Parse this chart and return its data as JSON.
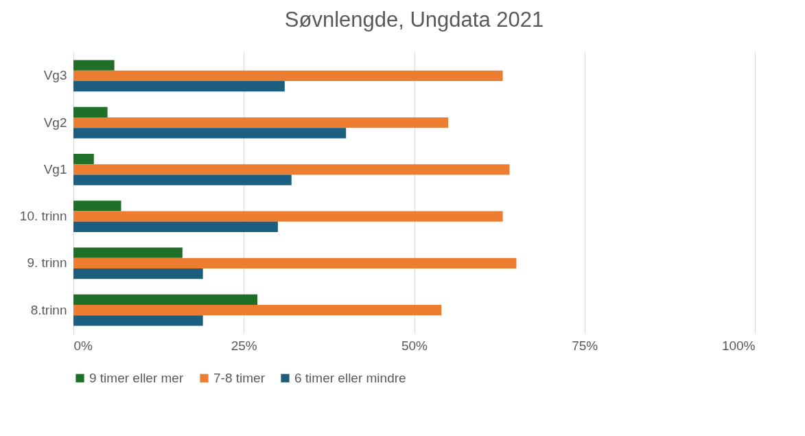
{
  "chart_data": {
    "type": "bar",
    "orientation": "horizontal",
    "title": "Søvnlengde, Ungdata 2021",
    "categories": [
      "Vg3",
      "Vg2",
      "Vg1",
      "10. trinn",
      "9. trinn",
      "8.trinn"
    ],
    "series": [
      {
        "name": "9 timer eller mer",
        "color": "#1f6f29",
        "values": [
          6,
          5,
          3,
          7,
          16,
          27
        ]
      },
      {
        "name": "7-8 timer",
        "color": "#ed7d31",
        "values": [
          63,
          55,
          64,
          63,
          65,
          54
        ]
      },
      {
        "name": "6 timer eller mindre",
        "color": "#1b5e80",
        "values": [
          31,
          40,
          32,
          30,
          19,
          19
        ]
      }
    ],
    "xlim": [
      0,
      100
    ],
    "xticks": [
      {
        "value": 0,
        "label": "0%"
      },
      {
        "value": 25,
        "label": "25%"
      },
      {
        "value": 50,
        "label": "50%"
      },
      {
        "value": 75,
        "label": "75%"
      },
      {
        "value": 100,
        "label": "100%"
      }
    ],
    "grid": "x",
    "legend": "bottom"
  }
}
